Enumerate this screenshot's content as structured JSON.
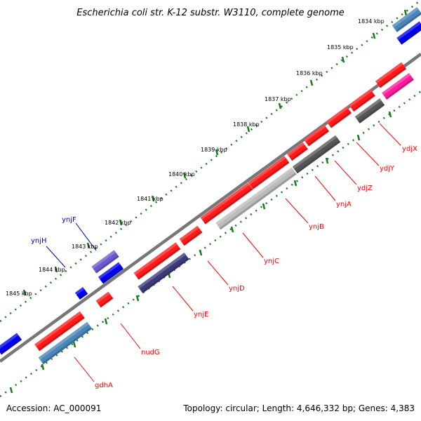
{
  "title": "Escherichia coli str. K-12 substr. W3110, complete genome",
  "accession": "Accession: AC_000091",
  "summary": "Topology: circular; Length: 4,646,332 bp; Genes: 4,383",
  "kbp_labels": [
    "1834 kbp",
    "1835 kbp",
    "1836 kbp",
    "1837 kbp",
    "1838 kbp",
    "1839 kbp",
    "1840 kbp",
    "1841 kbp",
    "1842 kbp",
    "1843 kbp",
    "1844 kbp",
    "1845 kbp"
  ],
  "gene_labels": [
    {
      "name": "ydjX",
      "color": "#ff0000"
    },
    {
      "name": "ydjY",
      "color": "#ff0000"
    },
    {
      "name": "ydjZ",
      "color": "#ff0000"
    },
    {
      "name": "ynjA",
      "color": "#ff0000"
    },
    {
      "name": "ynjB",
      "color": "#ff0000"
    },
    {
      "name": "ynjC",
      "color": "#ff0000"
    },
    {
      "name": "ynjD",
      "color": "#ff0000"
    },
    {
      "name": "ynjE",
      "color": "#ff0000"
    },
    {
      "name": "nudG",
      "color": "#ff0000"
    },
    {
      "name": "gdhA",
      "color": "#ff0000"
    },
    {
      "name": "ynjF",
      "color": "#0000cc"
    },
    {
      "name": "ynjH",
      "color": "#0000cc"
    }
  ],
  "colors": {
    "gene_red": "#ff1a1a",
    "gene_blue": "#0000ee",
    "steelblue": "#4a86b8",
    "gray_dark": "#555555",
    "gray_light": "#bbbbbb",
    "navy": "#3c3a7a",
    "purple": "#6a5acd",
    "magenta": "#ff1a9c",
    "tick_green": "#1a7a1a",
    "backbone": "#888888"
  }
}
